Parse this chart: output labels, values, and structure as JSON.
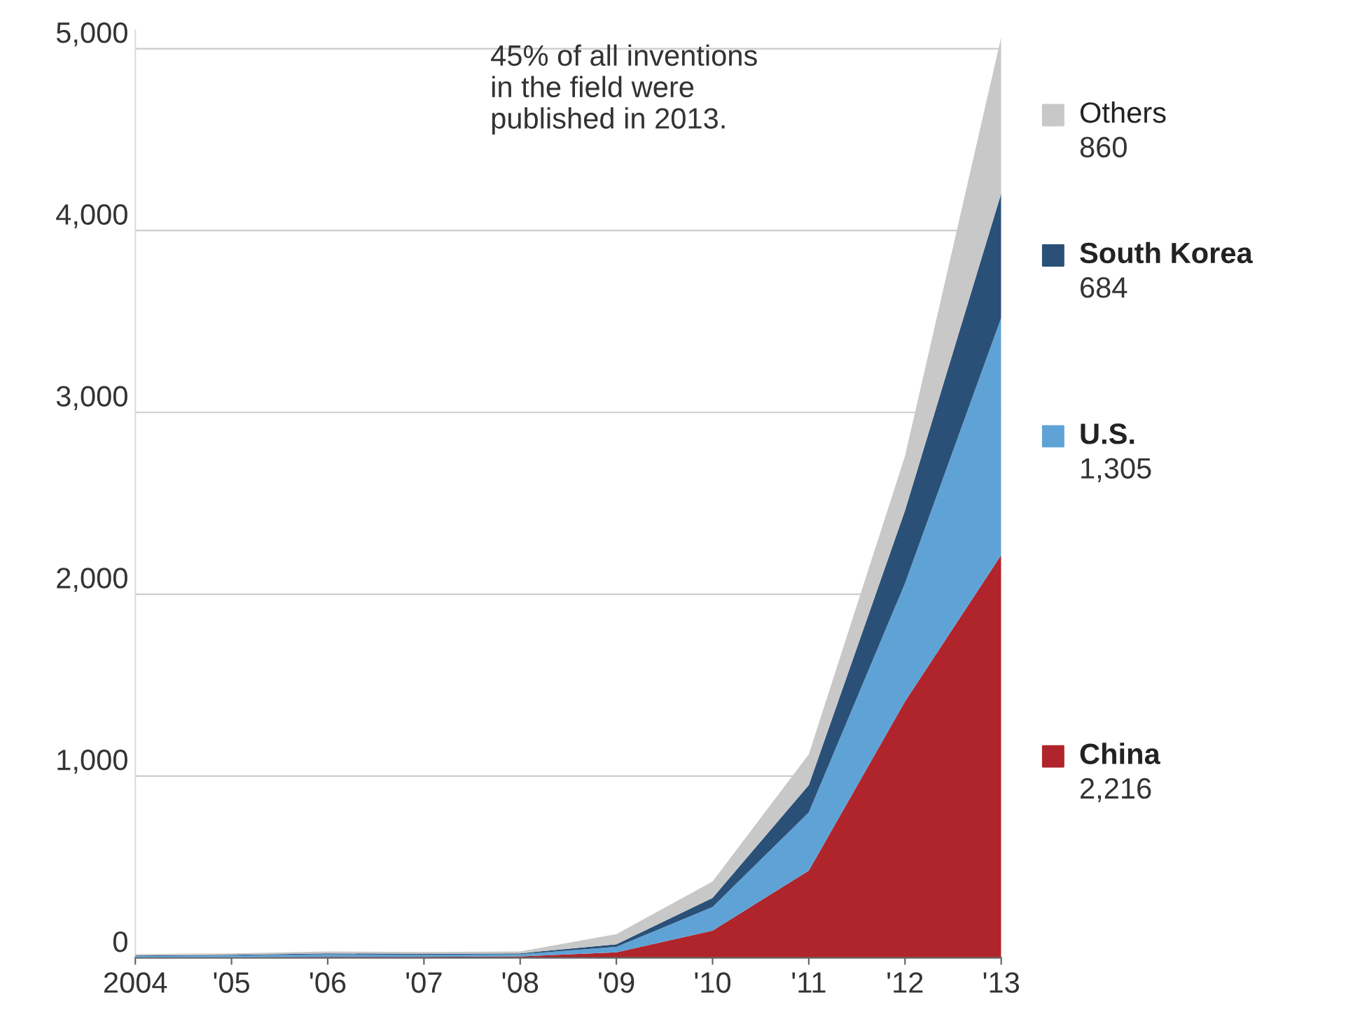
{
  "chart_data": {
    "type": "area",
    "stacked": true,
    "categories": [
      "2004",
      "'05",
      "'06",
      "'07",
      "'08",
      "'09",
      "'10",
      "'11",
      "'12",
      "'13"
    ],
    "series": [
      {
        "name": "China",
        "color": "#b0252b",
        "values": [
          2,
          3,
          5,
          5,
          8,
          30,
          150,
          480,
          1410,
          2216
        ]
      },
      {
        "name": "U.S.",
        "color": "#5fa3d6",
        "values": [
          8,
          10,
          15,
          12,
          12,
          30,
          130,
          320,
          650,
          1305
        ]
      },
      {
        "name": "South Korea",
        "color": "#2a5078",
        "values": [
          3,
          4,
          5,
          5,
          5,
          15,
          50,
          150,
          400,
          684
        ]
      },
      {
        "name": "Others",
        "color": "#c8c8c8",
        "values": [
          7,
          8,
          10,
          10,
          10,
          55,
          90,
          170,
          300,
          860
        ]
      }
    ],
    "ylim": [
      0,
      5100
    ],
    "yticks": [
      {
        "value": 0,
        "label": "0"
      },
      {
        "value": 1000,
        "label": "1,000"
      },
      {
        "value": 2000,
        "label": "2,000"
      },
      {
        "value": 3000,
        "label": "3,000"
      },
      {
        "value": 4000,
        "label": "4,000"
      },
      {
        "value": 5000,
        "label": "5,000"
      }
    ],
    "grid": "y",
    "legend": "right",
    "annotations": [
      "45% of all inventions\nin the field were\npublished in 2013.",
      "2,216",
      "1,305",
      "684",
      "860"
    ]
  }
}
